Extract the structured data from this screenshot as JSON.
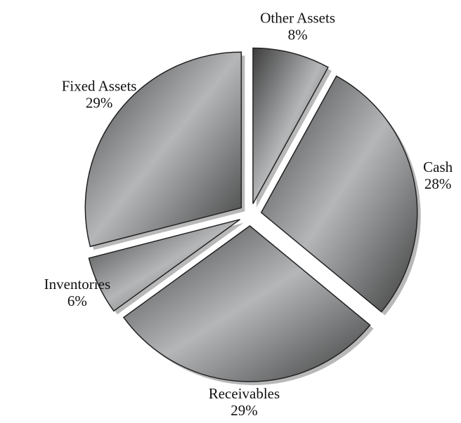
{
  "chart_data": {
    "type": "pie",
    "categories": [
      "Other Assets",
      "Cash",
      "Receivables",
      "Inventories",
      "Fixed Assets"
    ],
    "values": [
      8,
      28,
      29,
      6,
      29
    ],
    "value_labels": [
      "8%",
      "28%",
      "29%",
      "6%",
      "29%"
    ]
  }
}
